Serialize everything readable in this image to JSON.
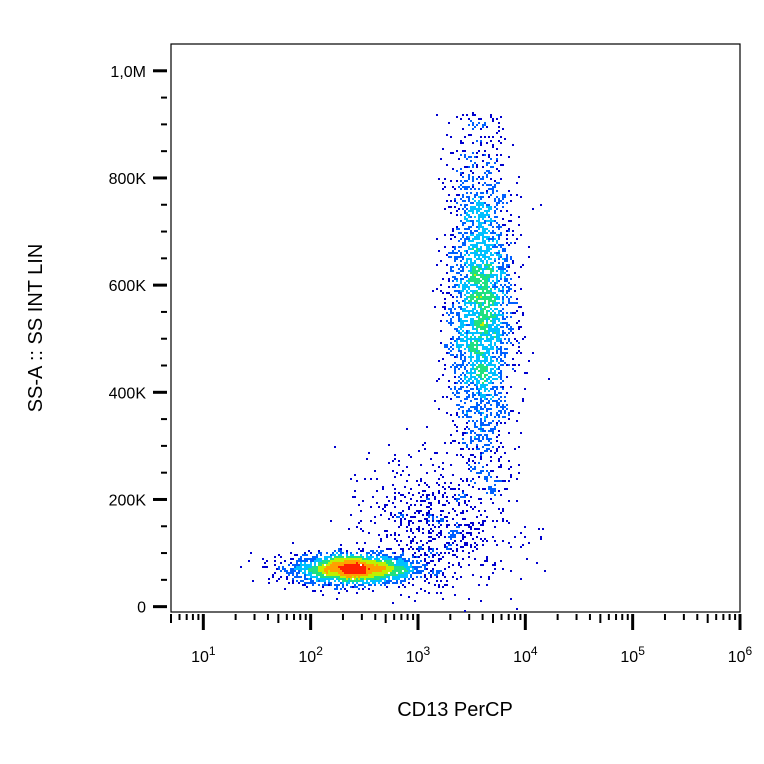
{
  "chart_data": {
    "type": "scatter",
    "subtype": "flow-cytometry-density-dot-plot",
    "xlabel": "CD13 PerCP",
    "ylabel": "SS-A :: SS INT LIN",
    "x_scale": "log",
    "y_scale": "linear",
    "xlim": [
      5,
      1000000
    ],
    "ylim": [
      -10000,
      1050000
    ],
    "grid": false,
    "legend": "none",
    "x_ticks": [
      {
        "base": "10",
        "exp": "1",
        "value": 10
      },
      {
        "base": "10",
        "exp": "2",
        "value": 100
      },
      {
        "base": "10",
        "exp": "3",
        "value": 1000
      },
      {
        "base": "10",
        "exp": "4",
        "value": 10000
      },
      {
        "base": "10",
        "exp": "5",
        "value": 100000
      },
      {
        "base": "10",
        "exp": "6",
        "value": 1000000
      }
    ],
    "y_ticks": [
      {
        "label": "0",
        "value": 0
      },
      {
        "label": "200K",
        "value": 200000
      },
      {
        "label": "400K",
        "value": 400000
      },
      {
        "label": "600K",
        "value": 600000
      },
      {
        "label": "800K",
        "value": 800000
      },
      {
        "label": "1,0M",
        "value": 1000000
      }
    ],
    "populations": [
      {
        "x_center": 250,
        "y_center": 70000,
        "x_spread_decades": 0.28,
        "y_spread": 14000,
        "events": 2600
      },
      {
        "x_center": 3800,
        "y_center": 560000,
        "x_spread_decades": 0.15,
        "y_spread": 150000,
        "y_min": 200000,
        "y_max": 920000,
        "events": 5200
      },
      {
        "x_center": 1500,
        "y_center": 150000,
        "x_spread_decades": 0.35,
        "y_spread": 60000,
        "events": 700
      }
    ],
    "density_colors": [
      "#0000d0",
      "#0060ff",
      "#00c0ff",
      "#20e080",
      "#c0f000",
      "#ffa000",
      "#ff2000"
    ]
  }
}
